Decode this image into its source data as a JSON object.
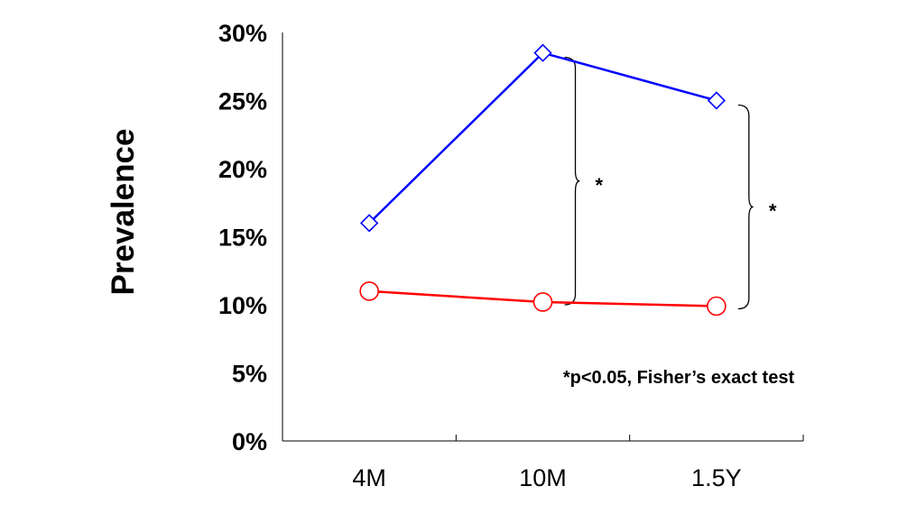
{
  "chart_data": {
    "type": "line",
    "categories": [
      "4M",
      "10M",
      "1.5Y"
    ],
    "series": [
      {
        "values": [
          16,
          28.5,
          25
        ],
        "color": "#0000ff",
        "marker": "diamond"
      },
      {
        "values": [
          11,
          10.2,
          9.9
        ],
        "color": "#ff0000",
        "marker": "circle"
      }
    ],
    "ylabel": "Prevalence",
    "xlabel": "",
    "ylim": [
      0,
      30
    ],
    "y_ticks": [
      "0%",
      "5%",
      "10%",
      "15%",
      "20%",
      "25%",
      "30%"
    ],
    "annotation": "*p<0.05, Fisher’s exact test",
    "significance": [
      {
        "category": "10M",
        "symbol": "*"
      },
      {
        "category": "1.5Y",
        "symbol": "*"
      }
    ],
    "grid": false,
    "legend": "none"
  }
}
